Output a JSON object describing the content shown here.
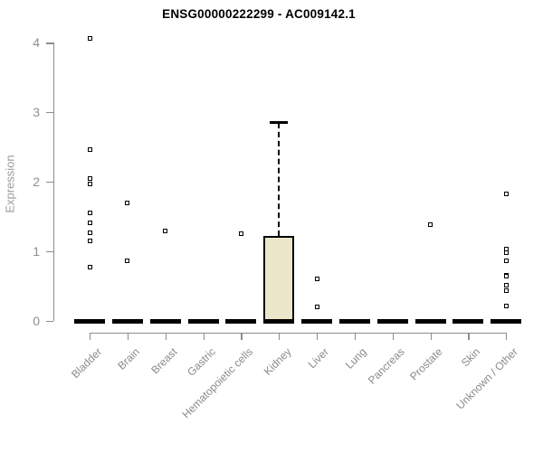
{
  "title": "ENSG00000222299 - AC009142.1",
  "colors": {
    "box_fill": "#ece6cb",
    "box_border": "#000000",
    "axis": "#8c8c8c",
    "y_tick_label": "#8d8d97",
    "x_tick_label": "#8a8a8a",
    "title": "#000000",
    "median_bar": "#000000",
    "outlier_border": "#000000"
  },
  "chart_data": {
    "type": "boxplot",
    "title": "ENSG00000222299 - AC009142.1",
    "xlabel": "",
    "ylabel": "Expression",
    "ylim": [
      0,
      4
    ],
    "yticks": [
      0,
      1,
      2,
      3,
      4
    ],
    "grid": false,
    "legend": false,
    "categories": [
      "Bladder",
      "Brain",
      "Breast",
      "Gastric",
      "Hematopoietic cells",
      "Kidney",
      "Liver",
      "Lung",
      "Pancreas",
      "Prostate",
      "Skin",
      "Unknown / Other"
    ],
    "boxes": [
      {
        "category": "Bladder",
        "q1": 0,
        "median": 0,
        "q3": 0,
        "whisker_low": 0,
        "whisker_high": 0,
        "outliers": [
          4.06,
          2.47,
          2.05,
          1.97,
          1.56,
          1.41,
          1.27,
          1.15,
          0.78
        ]
      },
      {
        "category": "Brain",
        "q1": 0,
        "median": 0,
        "q3": 0,
        "whisker_low": 0,
        "whisker_high": 0,
        "outliers": [
          1.7,
          0.86
        ]
      },
      {
        "category": "Breast",
        "q1": 0,
        "median": 0,
        "q3": 0,
        "whisker_low": 0,
        "whisker_high": 0,
        "outliers": [
          1.29
        ]
      },
      {
        "category": "Gastric",
        "q1": 0,
        "median": 0,
        "q3": 0,
        "whisker_low": 0,
        "whisker_high": 0,
        "outliers": []
      },
      {
        "category": "Hematopoietic cells",
        "q1": 0,
        "median": 0,
        "q3": 0,
        "whisker_low": 0,
        "whisker_high": 0,
        "outliers": [
          1.25
        ]
      },
      {
        "category": "Kidney",
        "q1": 0,
        "median": 0,
        "q3": 1.22,
        "whisker_low": 0,
        "whisker_high": 2.87,
        "outliers": []
      },
      {
        "category": "Liver",
        "q1": 0,
        "median": 0,
        "q3": 0,
        "whisker_low": 0,
        "whisker_high": 0,
        "outliers": [
          0.6,
          0.2
        ]
      },
      {
        "category": "Lung",
        "q1": 0,
        "median": 0,
        "q3": 0,
        "whisker_low": 0,
        "whisker_high": 0,
        "outliers": []
      },
      {
        "category": "Pancreas",
        "q1": 0,
        "median": 0,
        "q3": 0,
        "whisker_low": 0,
        "whisker_high": 0,
        "outliers": []
      },
      {
        "category": "Prostate",
        "q1": 0,
        "median": 0,
        "q3": 0,
        "whisker_low": 0,
        "whisker_high": 0,
        "outliers": [
          1.39
        ]
      },
      {
        "category": "Skin",
        "q1": 0,
        "median": 0,
        "q3": 0,
        "whisker_low": 0,
        "whisker_high": 0,
        "outliers": []
      },
      {
        "category": "Unknown / Other",
        "q1": 0,
        "median": 0,
        "q3": 0,
        "whisker_low": 0,
        "whisker_high": 0,
        "outliers": [
          1.83,
          1.03,
          0.98,
          0.86,
          0.66,
          0.64,
          0.52,
          0.43,
          0.21
        ]
      }
    ]
  }
}
